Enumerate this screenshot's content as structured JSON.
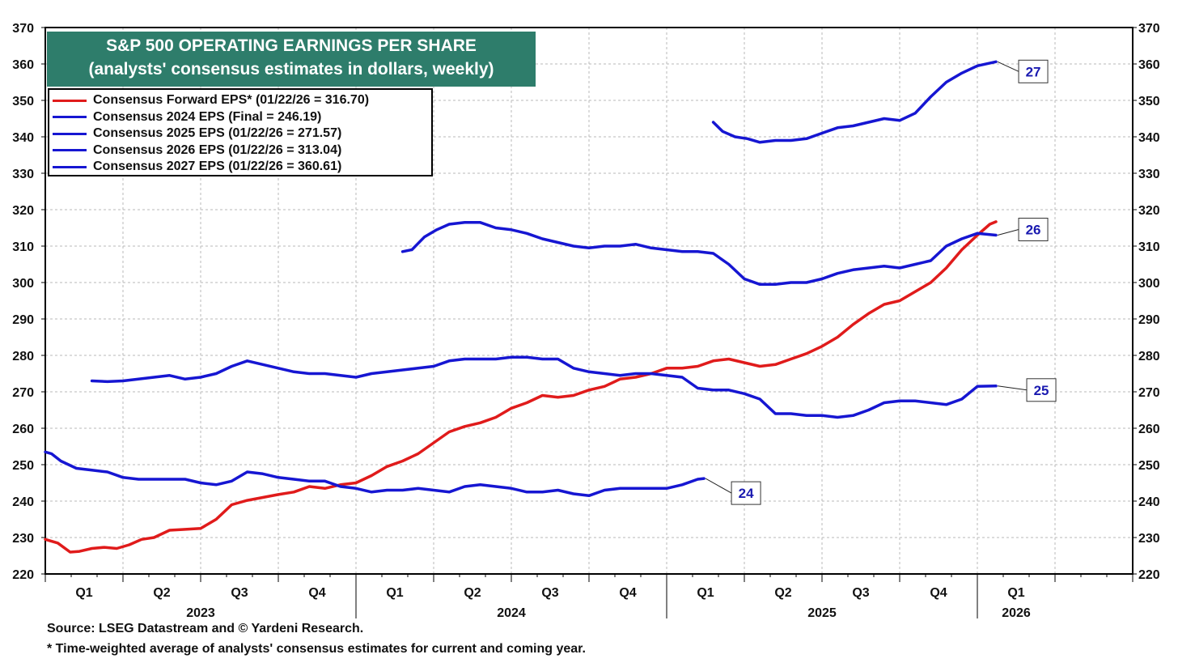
{
  "chart_data": {
    "type": "line",
    "title": "S&P 500 OPERATING EARNINGS PER SHARE",
    "subtitle": "(analysts' consensus estimates in dollars, weekly)",
    "ylim": [
      220,
      370
    ],
    "yticks": [
      220,
      230,
      240,
      250,
      260,
      270,
      280,
      290,
      300,
      310,
      320,
      330,
      340,
      350,
      360,
      370
    ],
    "xlim": [
      2023.0,
      2026.5
    ],
    "quarter_labels": [
      {
        "label": "Q1",
        "x": 2023.125
      },
      {
        "label": "Q2",
        "x": 2023.375
      },
      {
        "label": "Q3",
        "x": 2023.625
      },
      {
        "label": "Q4",
        "x": 2023.875
      },
      {
        "label": "Q1",
        "x": 2024.125
      },
      {
        "label": "Q2",
        "x": 2024.375
      },
      {
        "label": "Q3",
        "x": 2024.625
      },
      {
        "label": "Q4",
        "x": 2024.875
      },
      {
        "label": "Q1",
        "x": 2025.125
      },
      {
        "label": "Q2",
        "x": 2025.375
      },
      {
        "label": "Q3",
        "x": 2025.625
      },
      {
        "label": "Q4",
        "x": 2025.875
      },
      {
        "label": "Q1",
        "x": 2026.125
      }
    ],
    "year_labels": [
      {
        "label": "2023",
        "x": 2023.5
      },
      {
        "label": "2024",
        "x": 2024.5
      },
      {
        "label": "2025",
        "x": 2025.5
      },
      {
        "label": "2026",
        "x": 2026.125
      }
    ],
    "grid": true,
    "legend_position": "top-left",
    "series": [
      {
        "name": "Consensus Forward EPS* (01/22/26 = 316.70)",
        "color": "#e01b1b",
        "x": [
          2023.0,
          2023.04,
          2023.08,
          2023.11,
          2023.15,
          2023.19,
          2023.23,
          2023.27,
          2023.31,
          2023.35,
          2023.4,
          2023.44,
          2023.5,
          2023.55,
          2023.6,
          2023.65,
          2023.7,
          2023.75,
          2023.8,
          2023.85,
          2023.9,
          2023.95,
          2024.0,
          2024.05,
          2024.1,
          2024.15,
          2024.2,
          2024.25,
          2024.3,
          2024.35,
          2024.4,
          2024.45,
          2024.5,
          2024.55,
          2024.6,
          2024.65,
          2024.7,
          2024.75,
          2024.8,
          2024.85,
          2024.9,
          2024.95,
          2025.0,
          2025.05,
          2025.1,
          2025.15,
          2025.2,
          2025.25,
          2025.3,
          2025.35,
          2025.4,
          2025.45,
          2025.5,
          2025.55,
          2025.6,
          2025.65,
          2025.7,
          2025.75,
          2025.8,
          2025.85,
          2025.9,
          2025.95,
          2026.0,
          2026.04,
          2026.06
        ],
        "values": [
          229.5,
          228.5,
          226.0,
          226.2,
          227.0,
          227.3,
          227.0,
          228.0,
          229.5,
          230.0,
          232.0,
          232.2,
          232.5,
          235.0,
          239.0,
          240.2,
          241.0,
          241.8,
          242.5,
          244.0,
          243.5,
          244.5,
          245.0,
          247.0,
          249.5,
          251.0,
          253.0,
          256.0,
          259.0,
          260.5,
          261.5,
          263.0,
          265.5,
          267.0,
          269.0,
          268.5,
          269.0,
          270.5,
          271.5,
          273.5,
          274.0,
          275.0,
          276.5,
          276.5,
          277.0,
          278.5,
          279.0,
          278.0,
          277.0,
          277.5,
          279.0,
          280.5,
          282.5,
          285.0,
          288.5,
          291.5,
          294.0,
          295.0,
          297.5,
          300.0,
          304.0,
          309.0,
          313.0,
          316.0,
          316.7
        ]
      },
      {
        "name": "Consensus 2024 EPS (Final = 246.19)",
        "color": "#1616d2",
        "end_label": "24",
        "x": [
          2023.0,
          2023.02,
          2023.05,
          2023.1,
          2023.15,
          2023.2,
          2023.25,
          2023.3,
          2023.35,
          2023.4,
          2023.45,
          2023.5,
          2023.55,
          2023.6,
          2023.65,
          2023.7,
          2023.75,
          2023.8,
          2023.85,
          2023.9,
          2023.95,
          2024.0,
          2024.05,
          2024.1,
          2024.15,
          2024.2,
          2024.25,
          2024.3,
          2024.35,
          2024.4,
          2024.45,
          2024.5,
          2024.55,
          2024.6,
          2024.65,
          2024.7,
          2024.75,
          2024.8,
          2024.85,
          2024.9,
          2024.95,
          2025.0,
          2025.05,
          2025.1,
          2025.12
        ],
        "values": [
          253.5,
          253.0,
          251.0,
          249.0,
          248.5,
          248.0,
          246.5,
          246.0,
          246.0,
          246.0,
          246.0,
          245.0,
          244.5,
          245.5,
          248.0,
          247.5,
          246.5,
          246.0,
          245.5,
          245.5,
          244.0,
          243.5,
          242.5,
          243.0,
          243.0,
          243.5,
          243.0,
          242.5,
          244.0,
          244.5,
          244.0,
          243.5,
          242.5,
          242.5,
          243.0,
          242.0,
          241.5,
          243.0,
          243.5,
          243.5,
          243.5,
          243.5,
          244.5,
          246.0,
          246.2
        ]
      },
      {
        "name": "Consensus 2025 EPS (01/22/26 = 271.57)",
        "color": "#1616d2",
        "end_label": "25",
        "x": [
          2023.15,
          2023.2,
          2023.25,
          2023.3,
          2023.35,
          2023.4,
          2023.45,
          2023.5,
          2023.55,
          2023.6,
          2023.65,
          2023.7,
          2023.75,
          2023.8,
          2023.85,
          2023.9,
          2023.95,
          2024.0,
          2024.05,
          2024.1,
          2024.15,
          2024.2,
          2024.25,
          2024.3,
          2024.35,
          2024.4,
          2024.45,
          2024.5,
          2024.55,
          2024.6,
          2024.65,
          2024.7,
          2024.75,
          2024.8,
          2024.85,
          2024.9,
          2024.95,
          2025.0,
          2025.05,
          2025.1,
          2025.15,
          2025.2,
          2025.25,
          2025.3,
          2025.35,
          2025.4,
          2025.45,
          2025.5,
          2025.55,
          2025.6,
          2025.65,
          2025.7,
          2025.75,
          2025.8,
          2025.85,
          2025.9,
          2025.95,
          2026.0,
          2026.06
        ],
        "values": [
          273.0,
          272.8,
          273.0,
          273.5,
          274.0,
          274.5,
          273.5,
          274.0,
          275.0,
          277.0,
          278.5,
          277.5,
          276.5,
          275.5,
          275.0,
          275.0,
          274.5,
          274.0,
          275.0,
          275.5,
          276.0,
          276.5,
          277.0,
          278.5,
          279.0,
          279.0,
          279.0,
          279.5,
          279.5,
          279.0,
          279.0,
          276.5,
          275.5,
          275.0,
          274.5,
          275.0,
          275.0,
          274.5,
          274.0,
          271.0,
          270.5,
          270.5,
          269.5,
          268.0,
          264.0,
          264.0,
          263.5,
          263.5,
          263.0,
          263.5,
          265.0,
          267.0,
          267.5,
          267.5,
          267.0,
          266.5,
          268.0,
          271.5,
          271.6
        ]
      },
      {
        "name": "Consensus 2026 EPS (01/22/26 = 313.04)",
        "color": "#1616d2",
        "end_label": "26",
        "x": [
          2024.15,
          2024.18,
          2024.22,
          2024.26,
          2024.3,
          2024.35,
          2024.4,
          2024.45,
          2024.5,
          2024.55,
          2024.6,
          2024.65,
          2024.7,
          2024.75,
          2024.8,
          2024.85,
          2024.9,
          2024.95,
          2025.0,
          2025.05,
          2025.1,
          2025.15,
          2025.2,
          2025.25,
          2025.3,
          2025.35,
          2025.4,
          2025.45,
          2025.5,
          2025.55,
          2025.6,
          2025.65,
          2025.7,
          2025.75,
          2025.8,
          2025.85,
          2025.9,
          2025.95,
          2026.0,
          2026.06
        ],
        "values": [
          308.5,
          309.0,
          312.5,
          314.5,
          316.0,
          316.5,
          316.5,
          315.0,
          314.5,
          313.5,
          312.0,
          311.0,
          310.0,
          309.5,
          310.0,
          310.0,
          310.5,
          309.5,
          309.0,
          308.5,
          308.5,
          308.0,
          305.0,
          301.0,
          299.5,
          299.5,
          300.0,
          300.0,
          301.0,
          302.5,
          303.5,
          304.0,
          304.5,
          304.0,
          305.0,
          306.0,
          310.0,
          312.0,
          313.5,
          313.0
        ]
      },
      {
        "name": "Consensus 2027 EPS (01/22/26 = 360.61)",
        "color": "#1616d2",
        "end_label": "27",
        "x": [
          2025.15,
          2025.18,
          2025.22,
          2025.26,
          2025.3,
          2025.35,
          2025.4,
          2025.45,
          2025.5,
          2025.55,
          2025.6,
          2025.65,
          2025.7,
          2025.75,
          2025.8,
          2025.85,
          2025.9,
          2025.95,
          2026.0,
          2026.06
        ],
        "values": [
          344.0,
          341.5,
          340.0,
          339.5,
          338.5,
          339.0,
          339.0,
          339.5,
          341.0,
          342.5,
          343.0,
          344.0,
          345.0,
          344.5,
          346.5,
          351.0,
          355.0,
          357.5,
          359.5,
          360.6
        ]
      }
    ],
    "footnotes": [
      "Source: LSEG Datastream and © Yardeni Research.",
      "* Time-weighted average of analysts' consensus estimates for current and coming year."
    ]
  }
}
